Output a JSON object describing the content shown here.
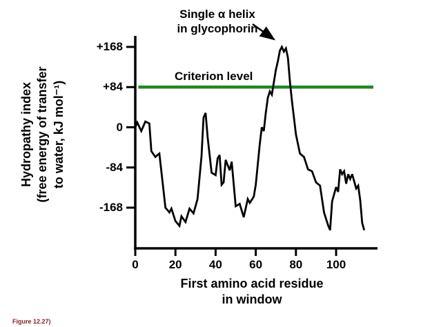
{
  "chart_data": {
    "type": "line",
    "title": "",
    "xlabel": "First amino acid residue\nin window",
    "ylabel": "Hydropathy index\n(free energy of transfer\nto water, kJ mol⁻¹)",
    "x_ticks": [
      0,
      20,
      40,
      60,
      80,
      100
    ],
    "x_tick_labels": [
      "0",
      "20",
      "40",
      "60",
      "80",
      "100"
    ],
    "y_ticks": [
      168,
      84,
      0,
      -84,
      -168
    ],
    "y_tick_labels": [
      "+168",
      "+84",
      "0",
      "-84",
      "-168"
    ],
    "xlim": [
      0,
      118
    ],
    "ylim": [
      -252,
      200
    ],
    "grid": false,
    "legend": "none",
    "criterion": {
      "label": "Criterion level",
      "value": 84,
      "color": "#1e8a1e"
    },
    "annotation": {
      "text": "Single α helix\nin glycophorin",
      "points_to": {
        "x": 73,
        "y": 168
      }
    },
    "series": [
      {
        "name": "hydropathy",
        "color": "#000000",
        "points": [
          [
            0,
            0
          ],
          [
            1,
            10
          ],
          [
            3,
            -8
          ],
          [
            5,
            12
          ],
          [
            7,
            8
          ],
          [
            8,
            -50
          ],
          [
            10,
            -62
          ],
          [
            12,
            -55
          ],
          [
            13,
            -92
          ],
          [
            15,
            -168
          ],
          [
            17,
            -178
          ],
          [
            18,
            -170
          ],
          [
            20,
            -196
          ],
          [
            22,
            -206
          ],
          [
            23,
            -186
          ],
          [
            25,
            -198
          ],
          [
            27,
            -170
          ],
          [
            29,
            -180
          ],
          [
            31,
            -150
          ],
          [
            33,
            -60
          ],
          [
            34,
            20
          ],
          [
            35,
            30
          ],
          [
            36,
            -20
          ],
          [
            38,
            -95
          ],
          [
            40,
            -100
          ],
          [
            41,
            -65
          ],
          [
            42,
            -58
          ],
          [
            43,
            -120
          ],
          [
            44,
            -115
          ],
          [
            45,
            -68
          ],
          [
            47,
            -90
          ],
          [
            48,
            -72
          ],
          [
            50,
            -165
          ],
          [
            52,
            -160
          ],
          [
            54,
            -188
          ],
          [
            56,
            -150
          ],
          [
            57,
            -158
          ],
          [
            59,
            -145
          ],
          [
            60,
            -120
          ],
          [
            62,
            -35
          ],
          [
            63,
            0
          ],
          [
            64,
            -8
          ],
          [
            65,
            30
          ],
          [
            66,
            62
          ],
          [
            67,
            75
          ],
          [
            68,
            68
          ],
          [
            70,
            120
          ],
          [
            71,
            138
          ],
          [
            72,
            160
          ],
          [
            73,
            168
          ],
          [
            74,
            158
          ],
          [
            75,
            165
          ],
          [
            76,
            145
          ],
          [
            77,
            95
          ],
          [
            78,
            55
          ],
          [
            80,
            -15
          ],
          [
            82,
            -55
          ],
          [
            84,
            -62
          ],
          [
            86,
            -88
          ],
          [
            88,
            -92
          ],
          [
            90,
            -115
          ],
          [
            92,
            -122
          ],
          [
            94,
            -178
          ],
          [
            96,
            -205
          ],
          [
            97,
            -215
          ],
          [
            98,
            -155
          ],
          [
            100,
            -125
          ],
          [
            101,
            -135
          ],
          [
            102,
            -88
          ],
          [
            103,
            -98
          ],
          [
            104,
            -92
          ],
          [
            105,
            -118
          ],
          [
            106,
            -98
          ],
          [
            107,
            -108
          ],
          [
            108,
            -98
          ],
          [
            110,
            -128
          ],
          [
            111,
            -122
          ],
          [
            112,
            -152
          ],
          [
            113,
            -200
          ],
          [
            114,
            -215
          ]
        ]
      }
    ],
    "caption": "Figure 12.27)"
  }
}
